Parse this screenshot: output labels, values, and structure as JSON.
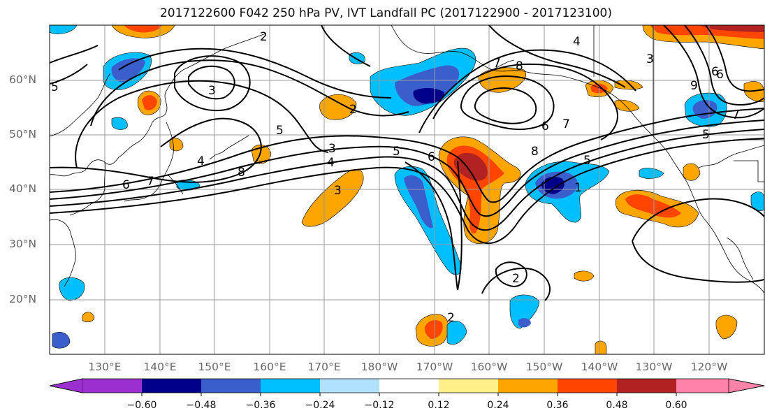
{
  "title": "2017122600 F042 250 hPa PV, IVT Landfall PC (2017122900 - 2017123100)",
  "lat_labels": [
    "60°N",
    "50°N",
    "40°N",
    "30°N",
    "20°N"
  ],
  "lon_labels": [
    "130°E",
    "140°E",
    "150°E",
    "160°E",
    "170°E",
    "180°W",
    "170°W",
    "160°W",
    "150°W",
    "140°W",
    "130°W",
    "120°W"
  ],
  "colorbar": {
    "ticks": [
      "−0.60",
      "−0.48",
      "−0.36",
      "−0.24",
      "−0.12",
      "0.12",
      "0.24",
      "0.36",
      "0.48",
      "0.60"
    ],
    "colors": [
      "#9b30d0",
      "#00008b",
      "#3a5fcd",
      "#00bfff",
      "#b0e2ff",
      "#ffffff",
      "#fff08a",
      "#ffa500",
      "#ff4500",
      "#b22222",
      "#ff82ab"
    ]
  },
  "contour_labels": [
    "5",
    "3",
    "2",
    "6",
    "7",
    "4",
    "8",
    "5",
    "3",
    "4",
    "3",
    "2",
    "5",
    "6",
    "7",
    "8",
    "4",
    "1",
    "5",
    "6",
    "8",
    "7",
    "2",
    "2",
    "3",
    "6",
    "7",
    "9",
    "5",
    "6"
  ],
  "colors": {
    "negative_strong": "#00008b",
    "negative": "#3a5fcd",
    "negative_light": "#00bfff",
    "positive": "#ffa500",
    "positive_strong": "#ff4500",
    "positive_max": "#b22222"
  }
}
